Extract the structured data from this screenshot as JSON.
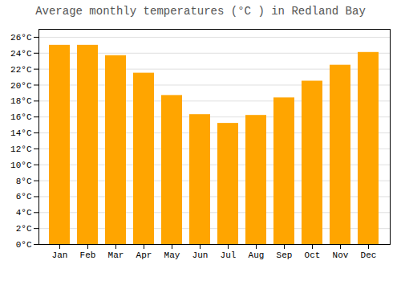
{
  "chart_data": {
    "type": "bar",
    "title": "Average monthly temperatures (°C ) in Redland Bay",
    "categories": [
      "Jan",
      "Feb",
      "Mar",
      "Apr",
      "May",
      "Jun",
      "Jul",
      "Aug",
      "Sep",
      "Oct",
      "Nov",
      "Dec"
    ],
    "values": [
      25.0,
      25.0,
      23.7,
      21.5,
      18.7,
      16.3,
      15.2,
      16.2,
      18.4,
      20.5,
      22.5,
      24.1
    ],
    "color": "#FFA500",
    "ylim": [
      0,
      27
    ],
    "yticks": [
      {
        "value": 0,
        "label": "0°C"
      },
      {
        "value": 2,
        "label": "2°C"
      },
      {
        "value": 4,
        "label": "4°C"
      },
      {
        "value": 6,
        "label": "6°C"
      },
      {
        "value": 8,
        "label": "8°C"
      },
      {
        "value": 10,
        "label": "10°C"
      },
      {
        "value": 12,
        "label": "12°C"
      },
      {
        "value": 14,
        "label": "14°C"
      },
      {
        "value": 16,
        "label": "16°C"
      },
      {
        "value": 18,
        "label": "18°C"
      },
      {
        "value": 20,
        "label": "20°C"
      },
      {
        "value": 22,
        "label": "22°C"
      },
      {
        "value": 24,
        "label": "24°C"
      },
      {
        "value": 26,
        "label": "26°C"
      }
    ],
    "grid": true
  }
}
